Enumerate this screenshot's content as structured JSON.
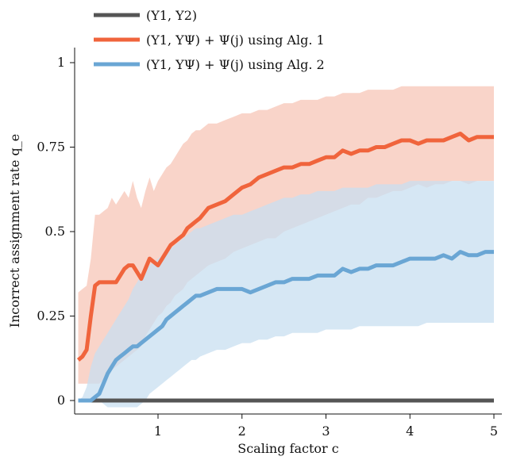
{
  "chart_data": {
    "type": "line",
    "xlabel": "Scaling factor c",
    "ylabel": "Incorrect assignment rate q_e",
    "xlim": [
      0,
      5
    ],
    "ylim": [
      -0.05,
      1.05
    ],
    "xticks": [
      {
        "v": 1,
        "label": "1"
      },
      {
        "v": 2,
        "label": "2"
      },
      {
        "v": 3,
        "label": "3"
      },
      {
        "v": 4,
        "label": "4"
      },
      {
        "v": 5,
        "label": "5"
      }
    ],
    "yticks": [
      {
        "v": 0,
        "label": "0"
      },
      {
        "v": 0.25,
        "label": "0.25"
      },
      {
        "v": 0.5,
        "label": "0.5"
      },
      {
        "v": 0.75,
        "label": "0.75"
      },
      {
        "v": 1,
        "label": "1"
      }
    ],
    "grid": false,
    "legend_position": "top-left",
    "series": [
      {
        "name": "(Y1, Y2)",
        "color": "#555555",
        "band_color": null,
        "x": [
          0.05,
          5.0
        ],
        "y": [
          0.0,
          0.0
        ]
      },
      {
        "name": "(Y1, YΨ) + Ψ(j) using Alg. 1",
        "color": "#f0643c",
        "band_color": "#f7c6b7",
        "x": [
          0.05,
          0.1,
          0.15,
          0.2,
          0.25,
          0.3,
          0.35,
          0.4,
          0.45,
          0.5,
          0.55,
          0.6,
          0.65,
          0.7,
          0.75,
          0.8,
          0.85,
          0.9,
          0.95,
          1.0,
          1.05,
          1.1,
          1.15,
          1.2,
          1.25,
          1.3,
          1.35,
          1.4,
          1.45,
          1.5,
          1.6,
          1.7,
          1.8,
          1.9,
          2.0,
          2.1,
          2.2,
          2.3,
          2.4,
          2.5,
          2.6,
          2.7,
          2.8,
          2.9,
          3.0,
          3.1,
          3.2,
          3.3,
          3.4,
          3.5,
          3.6,
          3.7,
          3.8,
          3.9,
          4.0,
          4.1,
          4.2,
          4.3,
          4.4,
          4.5,
          4.6,
          4.7,
          4.8,
          4.9,
          5.0
        ],
        "y": [
          0.12,
          0.13,
          0.15,
          0.25,
          0.34,
          0.35,
          0.35,
          0.35,
          0.35,
          0.35,
          0.37,
          0.39,
          0.4,
          0.4,
          0.38,
          0.36,
          0.39,
          0.42,
          0.41,
          0.4,
          0.42,
          0.44,
          0.46,
          0.47,
          0.48,
          0.49,
          0.51,
          0.52,
          0.53,
          0.54,
          0.57,
          0.58,
          0.59,
          0.61,
          0.63,
          0.64,
          0.66,
          0.67,
          0.68,
          0.69,
          0.69,
          0.7,
          0.7,
          0.71,
          0.72,
          0.72,
          0.74,
          0.73,
          0.74,
          0.74,
          0.75,
          0.75,
          0.76,
          0.77,
          0.77,
          0.76,
          0.77,
          0.77,
          0.77,
          0.78,
          0.79,
          0.77,
          0.78,
          0.78,
          0.78
        ],
        "lower": [
          0.05,
          0.05,
          0.05,
          0.05,
          0.05,
          0.05,
          0.06,
          0.08,
          0.09,
          0.1,
          0.11,
          0.12,
          0.13,
          0.14,
          0.15,
          0.16,
          0.19,
          0.21,
          0.23,
          0.25,
          0.26,
          0.28,
          0.29,
          0.31,
          0.32,
          0.33,
          0.35,
          0.36,
          0.37,
          0.38,
          0.4,
          0.41,
          0.42,
          0.44,
          0.45,
          0.46,
          0.47,
          0.48,
          0.48,
          0.5,
          0.51,
          0.52,
          0.53,
          0.54,
          0.55,
          0.56,
          0.57,
          0.58,
          0.58,
          0.6,
          0.6,
          0.61,
          0.62,
          0.62,
          0.63,
          0.64,
          0.63,
          0.64,
          0.64,
          0.65,
          0.65,
          0.64,
          0.65,
          0.65,
          0.65
        ],
        "upper": [
          0.32,
          0.33,
          0.34,
          0.42,
          0.55,
          0.55,
          0.56,
          0.57,
          0.6,
          0.58,
          0.6,
          0.62,
          0.6,
          0.65,
          0.6,
          0.57,
          0.62,
          0.66,
          0.62,
          0.65,
          0.67,
          0.69,
          0.7,
          0.72,
          0.74,
          0.76,
          0.77,
          0.79,
          0.8,
          0.8,
          0.82,
          0.82,
          0.83,
          0.84,
          0.85,
          0.85,
          0.86,
          0.86,
          0.87,
          0.88,
          0.88,
          0.89,
          0.89,
          0.89,
          0.9,
          0.9,
          0.91,
          0.91,
          0.91,
          0.92,
          0.92,
          0.92,
          0.92,
          0.93,
          0.93,
          0.93,
          0.93,
          0.93,
          0.93,
          0.93,
          0.93,
          0.93,
          0.93,
          0.93,
          0.93
        ]
      },
      {
        "name": "(Y1, YΨ) + Ψ(j) using Alg. 2",
        "color": "#6aa6d4",
        "band_color": "#c8dff0",
        "x": [
          0.05,
          0.1,
          0.15,
          0.2,
          0.25,
          0.3,
          0.35,
          0.4,
          0.45,
          0.5,
          0.55,
          0.6,
          0.65,
          0.7,
          0.75,
          0.8,
          0.85,
          0.9,
          0.95,
          1.0,
          1.05,
          1.1,
          1.15,
          1.2,
          1.25,
          1.3,
          1.35,
          1.4,
          1.45,
          1.5,
          1.6,
          1.7,
          1.8,
          1.9,
          2.0,
          2.1,
          2.2,
          2.3,
          2.4,
          2.5,
          2.6,
          2.7,
          2.8,
          2.9,
          3.0,
          3.1,
          3.2,
          3.3,
          3.4,
          3.5,
          3.6,
          3.7,
          3.8,
          3.9,
          4.0,
          4.1,
          4.2,
          4.3,
          4.4,
          4.5,
          4.6,
          4.7,
          4.8,
          4.9,
          5.0
        ],
        "y": [
          0.0,
          0.0,
          0.0,
          0.0,
          0.01,
          0.02,
          0.05,
          0.08,
          0.1,
          0.12,
          0.13,
          0.14,
          0.15,
          0.16,
          0.16,
          0.17,
          0.18,
          0.19,
          0.2,
          0.21,
          0.22,
          0.24,
          0.25,
          0.26,
          0.27,
          0.28,
          0.29,
          0.3,
          0.31,
          0.31,
          0.32,
          0.33,
          0.33,
          0.33,
          0.33,
          0.32,
          0.33,
          0.34,
          0.35,
          0.35,
          0.36,
          0.36,
          0.36,
          0.37,
          0.37,
          0.37,
          0.39,
          0.38,
          0.39,
          0.39,
          0.4,
          0.4,
          0.4,
          0.41,
          0.42,
          0.42,
          0.42,
          0.42,
          0.43,
          0.42,
          0.44,
          0.43,
          0.43,
          0.44,
          0.44
        ],
        "lower": [
          0.0,
          0.0,
          0.0,
          0.0,
          0.0,
          0.0,
          -0.01,
          -0.02,
          -0.02,
          -0.02,
          -0.02,
          -0.02,
          -0.02,
          -0.02,
          -0.02,
          -0.01,
          0.0,
          0.02,
          0.03,
          0.04,
          0.05,
          0.06,
          0.07,
          0.08,
          0.09,
          0.1,
          0.11,
          0.12,
          0.12,
          0.13,
          0.14,
          0.15,
          0.15,
          0.16,
          0.17,
          0.17,
          0.18,
          0.18,
          0.19,
          0.19,
          0.2,
          0.2,
          0.2,
          0.2,
          0.21,
          0.21,
          0.21,
          0.21,
          0.22,
          0.22,
          0.22,
          0.22,
          0.22,
          0.22,
          0.22,
          0.22,
          0.23,
          0.23,
          0.23,
          0.23,
          0.23,
          0.23,
          0.23,
          0.23,
          0.23
        ],
        "upper": [
          0.0,
          0.01,
          0.04,
          0.1,
          0.14,
          0.16,
          0.18,
          0.2,
          0.22,
          0.24,
          0.26,
          0.28,
          0.3,
          0.33,
          0.35,
          0.37,
          0.39,
          0.4,
          0.41,
          0.42,
          0.43,
          0.44,
          0.45,
          0.46,
          0.47,
          0.48,
          0.49,
          0.5,
          0.51,
          0.51,
          0.52,
          0.53,
          0.54,
          0.55,
          0.55,
          0.56,
          0.57,
          0.58,
          0.59,
          0.6,
          0.6,
          0.61,
          0.61,
          0.62,
          0.62,
          0.62,
          0.63,
          0.63,
          0.63,
          0.63,
          0.64,
          0.64,
          0.64,
          0.64,
          0.65,
          0.65,
          0.65,
          0.65,
          0.65,
          0.65,
          0.65,
          0.65,
          0.65,
          0.65,
          0.65
        ]
      }
    ]
  }
}
